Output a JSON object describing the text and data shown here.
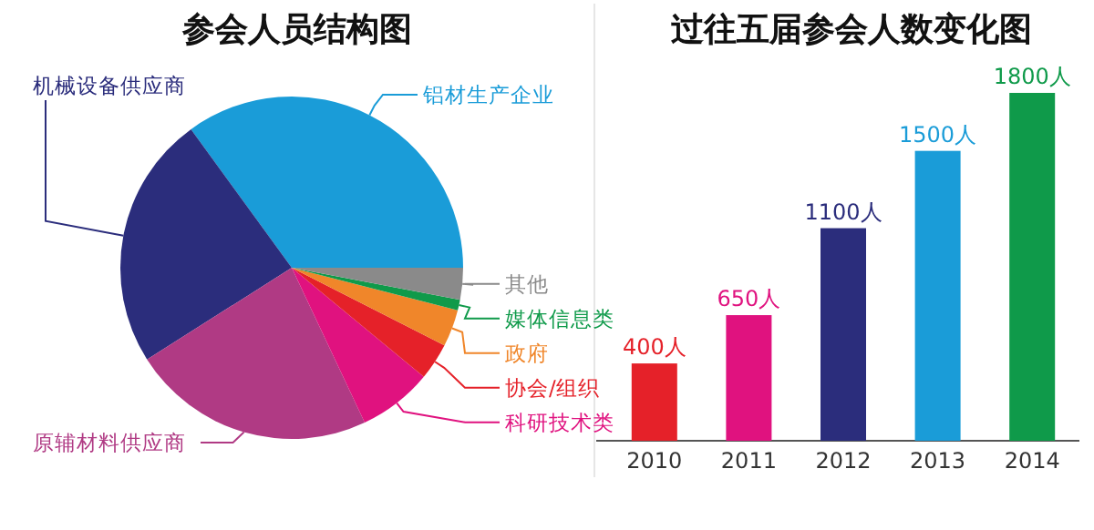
{
  "chart_data": [
    {
      "type": "pie",
      "title": "参会人员结构图",
      "categories": [
        "铝材生产企业",
        "机械设备供应商",
        "原辅材料供应商",
        "科研技术类",
        "协会/组织",
        "政府",
        "媒体信息类",
        "其他"
      ],
      "values": [
        35,
        24,
        23,
        7,
        3.5,
        3.5,
        1,
        3
      ],
      "colors": [
        "#1a9cd8",
        "#2b2d7c",
        "#b03a84",
        "#e0127f",
        "#e52129",
        "#f0862a",
        "#0f9a4a",
        "#8a8a8a"
      ]
    },
    {
      "type": "bar",
      "title": "过往五届参会人数变化图",
      "categories": [
        "2010",
        "2011",
        "2012",
        "2013",
        "2014"
      ],
      "values": [
        400,
        650,
        1100,
        1500,
        1800
      ],
      "value_labels": [
        "400人",
        "650人",
        "1100人",
        "1500人",
        "1800人"
      ],
      "colors": [
        "#e52129",
        "#e0127f",
        "#2b2d7c",
        "#1a9cd8",
        "#0f9a4a"
      ]
    }
  ]
}
